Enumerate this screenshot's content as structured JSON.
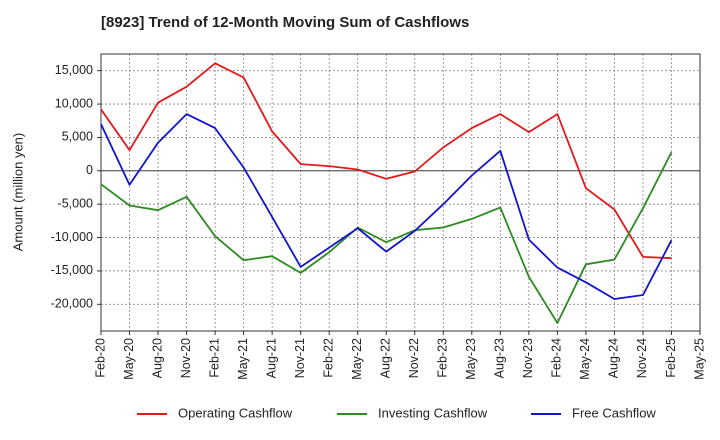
{
  "chart_data": {
    "type": "line",
    "title": "[8923]  Trend of 12-Month Moving Sum of Cashflows",
    "ylabel": "Amount (million yen)",
    "xlabel": "",
    "ylim": [
      -24000,
      17500
    ],
    "y_ticks": [
      15000,
      10000,
      5000,
      0,
      -5000,
      -10000,
      -15000,
      -20000
    ],
    "y_tick_labels": [
      "15,000",
      "10,000",
      "5,000",
      "0",
      "-5,000",
      "-10,000",
      "-15,000",
      "-20,000"
    ],
    "x_tick_labels": [
      "Feb-20",
      "May-20",
      "Aug-20",
      "Nov-20",
      "Feb-21",
      "May-21",
      "Aug-21",
      "Nov-21",
      "Feb-22",
      "May-22",
      "Aug-22",
      "Nov-22",
      "Feb-23",
      "May-23",
      "Aug-23",
      "Nov-23",
      "Feb-24",
      "May-24",
      "Aug-24",
      "Nov-24",
      "Feb-25",
      "May-25"
    ],
    "grid": true,
    "legend_position": "bottom",
    "series": [
      {
        "name": "Operating Cashflow",
        "color": "#e31a1c",
        "x": [
          "Feb-20",
          "May-20",
          "Aug-20",
          "Nov-20",
          "Feb-21",
          "May-21",
          "Aug-21",
          "Nov-21",
          "Feb-22",
          "May-22",
          "Aug-22",
          "Nov-22",
          "Feb-23",
          "May-23",
          "Aug-23",
          "Nov-23",
          "Feb-24",
          "May-24",
          "Aug-24",
          "Nov-24",
          "Feb-25"
        ],
        "values": [
          9200,
          3100,
          10200,
          12600,
          16100,
          14000,
          5900,
          1000,
          700,
          200,
          -1200,
          -100,
          3500,
          6400,
          8500,
          5800,
          8500,
          -2600,
          -5800,
          -12900,
          -13100
        ]
      },
      {
        "name": "Investing Cashflow",
        "color": "#2e8b22",
        "x": [
          "Feb-20",
          "May-20",
          "Aug-20",
          "Nov-20",
          "Feb-21",
          "May-21",
          "Aug-21",
          "Nov-21",
          "Feb-22",
          "May-22",
          "Aug-22",
          "Nov-22",
          "Feb-23",
          "May-23",
          "Aug-23",
          "Nov-23",
          "Feb-24",
          "May-24",
          "Aug-24",
          "Nov-24",
          "Feb-25"
        ],
        "values": [
          -2000,
          -5200,
          -5900,
          -3900,
          -9800,
          -13400,
          -12800,
          -15300,
          -12200,
          -8500,
          -10700,
          -8900,
          -8500,
          -7200,
          -5500,
          -15900,
          -22800,
          -14000,
          -13300,
          -5600,
          2800
        ]
      },
      {
        "name": "Free Cashflow",
        "color": "#1414cc",
        "x": [
          "Feb-20",
          "May-20",
          "Aug-20",
          "Nov-20",
          "Feb-21",
          "May-21",
          "Aug-21",
          "Nov-21",
          "Feb-22",
          "May-22",
          "Aug-22",
          "Nov-22",
          "Feb-23",
          "May-23",
          "Aug-23",
          "Nov-23",
          "Feb-24",
          "May-24",
          "Aug-24",
          "Nov-24",
          "Feb-25"
        ],
        "values": [
          7000,
          -2100,
          4200,
          8500,
          6400,
          500,
          -6900,
          -14400,
          -11500,
          -8600,
          -12100,
          -9000,
          -5000,
          -700,
          3000,
          -10300,
          -14500,
          -16700,
          -19200,
          -18600,
          -10400
        ]
      }
    ]
  }
}
